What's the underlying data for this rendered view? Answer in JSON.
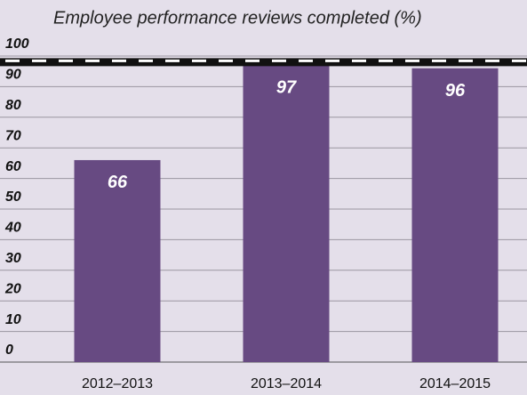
{
  "chart_data": {
    "type": "bar",
    "title": "Employee performance reviews completed (%)",
    "categories": [
      "2012–2013",
      "2013–2014",
      "2014–2015"
    ],
    "values": [
      66,
      97,
      96
    ],
    "color": "#674a82",
    "target": 98,
    "ylim": [
      0,
      100
    ],
    "yticks": [
      0,
      10,
      20,
      30,
      40,
      50,
      60,
      70,
      80,
      90,
      100
    ],
    "grid": true
  }
}
